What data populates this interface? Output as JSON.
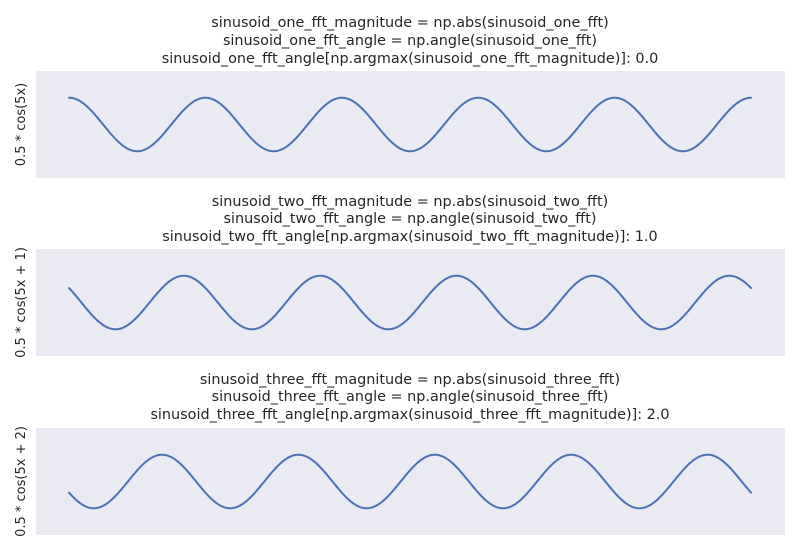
{
  "chart_data": [
    {
      "type": "line",
      "title_lines": [
        "sinusoid_one_fft_magnitude = np.abs(sinusoid_one_fft)",
        "sinusoid_one_fft_angle = np.angle(sinusoid_one_fft)",
        "sinusoid_one_fft_angle[np.argmax(sinusoid_one_fft_magnitude)]: 0.0"
      ],
      "ylabel": "0.5 * cos(5x)",
      "xlabel": "",
      "x_range": [
        0,
        6.283
      ],
      "ylim": [
        -1,
        1
      ],
      "amplitude": 0.5,
      "frequency": 5,
      "phase": 0,
      "line_color": "#4c72b0",
      "grid": false
    },
    {
      "type": "line",
      "title_lines": [
        "sinusoid_two_fft_magnitude = np.abs(sinusoid_two_fft)",
        "sinusoid_two_fft_angle = np.angle(sinusoid_two_fft)",
        "sinusoid_two_fft_angle[np.argmax(sinusoid_two_fft_magnitude)]: 1.0"
      ],
      "ylabel": "0.5 * cos(5x + 1)",
      "xlabel": "",
      "x_range": [
        0,
        6.283
      ],
      "ylim": [
        -1,
        1
      ],
      "amplitude": 0.5,
      "frequency": 5,
      "phase": 1,
      "line_color": "#4c72b0",
      "grid": false
    },
    {
      "type": "line",
      "title_lines": [
        "sinusoid_three_fft_magnitude = np.abs(sinusoid_three_fft)",
        "sinusoid_three_fft_angle = np.angle(sinusoid_three_fft)",
        "sinusoid_three_fft_angle[np.argmax(sinusoid_three_fft_magnitude)]: 2.0"
      ],
      "ylabel": "0.5 * cos(5x + 2)",
      "xlabel": "",
      "x_range": [
        0,
        6.283
      ],
      "ylim": [
        -1,
        1
      ],
      "amplitude": 0.5,
      "frequency": 5,
      "phase": 2,
      "line_color": "#4c72b0",
      "grid": false
    }
  ],
  "colors": {
    "axes_background": "#eaeaf2"
  }
}
